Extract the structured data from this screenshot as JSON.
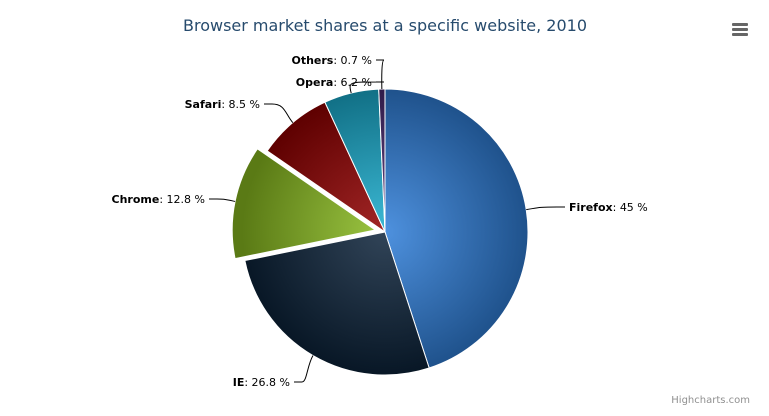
{
  "chart_data": {
    "type": "pie",
    "title": "Browser market shares at a specific website, 2010",
    "categories": [
      "Firefox",
      "IE",
      "Chrome",
      "Safari",
      "Opera",
      "Others"
    ],
    "values": [
      45.0,
      26.8,
      12.8,
      8.5,
      6.2,
      0.7
    ],
    "labels": [
      "45 %",
      "26.8 %",
      "12.8 %",
      "8.5 %",
      "6.2 %",
      "0.7 %"
    ],
    "sliced": "Chrome",
    "colors": [
      "#2f7ed8",
      "#0d233a",
      "#8bbc21",
      "#910000",
      "#1aadce",
      "#492970"
    ],
    "legend": "none"
  },
  "credits": "Highcharts.com",
  "menu_icon": "menu-icon"
}
